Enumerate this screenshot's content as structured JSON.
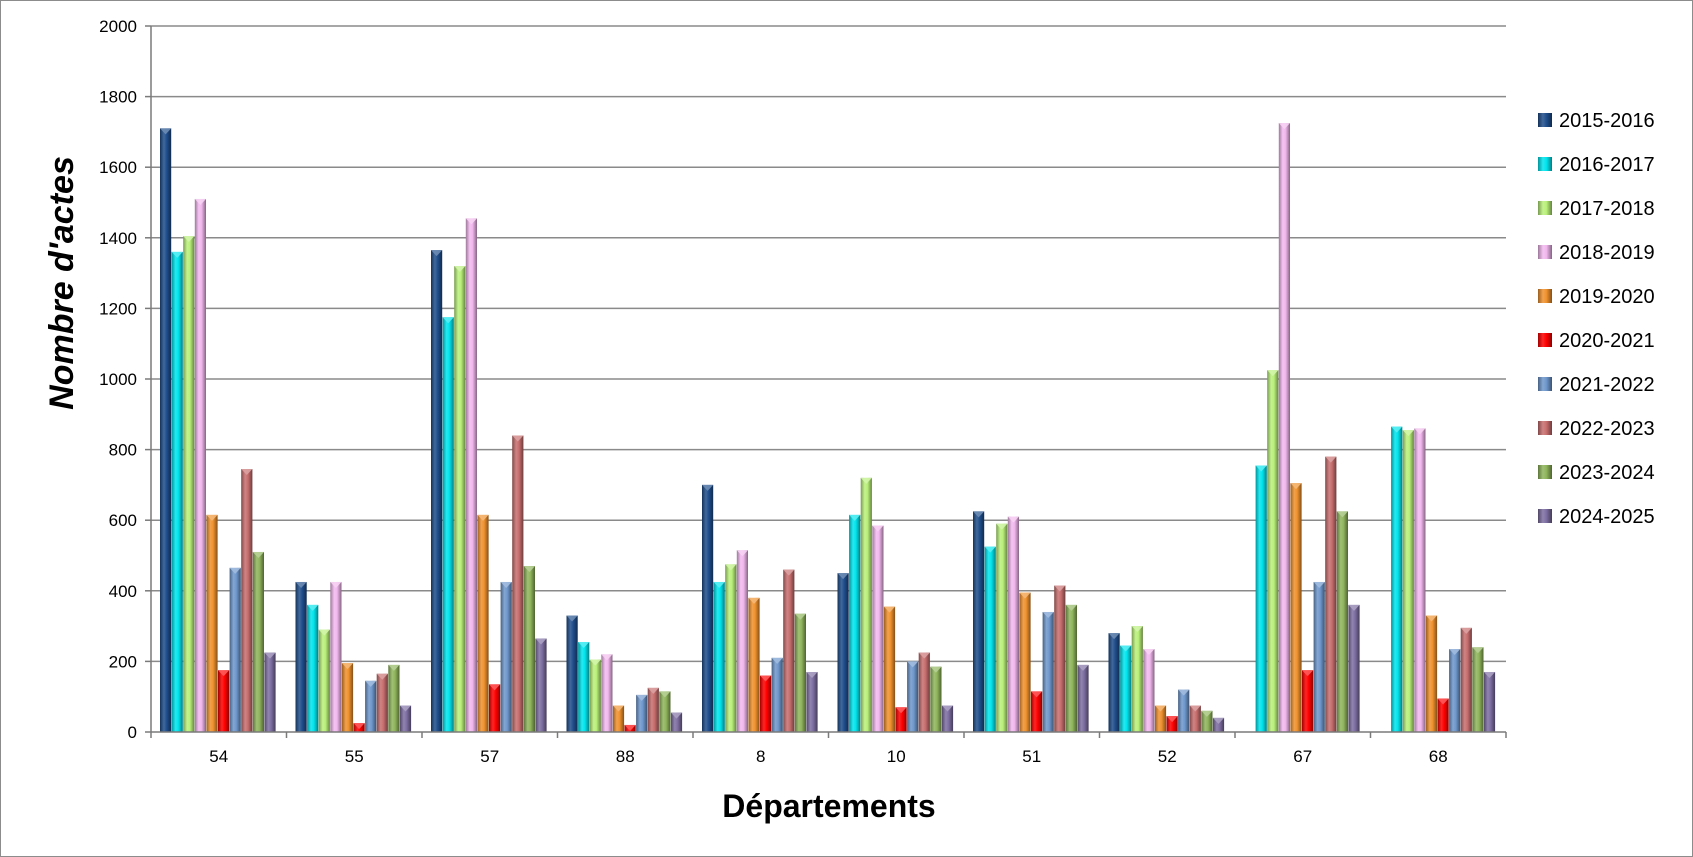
{
  "chart_data": {
    "type": "bar",
    "title": "",
    "xlabel": "Départements",
    "ylabel": "Nombre  d'actes",
    "ylim": [
      0,
      2000
    ],
    "yticks": [
      0,
      200,
      400,
      600,
      800,
      1000,
      1200,
      1400,
      1600,
      1800,
      2000
    ],
    "grid": true,
    "legend_position": "right",
    "categories": [
      "54",
      "55",
      "57",
      "88",
      "8",
      "10",
      "51",
      "52",
      "67",
      "68"
    ],
    "series": [
      {
        "name": "2015-2016",
        "color": "#1F4E8C",
        "values": [
          1710,
          425,
          1365,
          330,
          700,
          450,
          625,
          280,
          0,
          0
        ]
      },
      {
        "name": "2016-2017",
        "color": "#00E5EE",
        "values": [
          1360,
          360,
          1175,
          255,
          425,
          615,
          525,
          245,
          755,
          865
        ]
      },
      {
        "name": "2017-2018",
        "color": "#B9F07A",
        "values": [
          1405,
          290,
          1320,
          205,
          475,
          720,
          590,
          300,
          1025,
          855
        ]
      },
      {
        "name": "2018-2019",
        "color": "#F2B8EE",
        "values": [
          1510,
          425,
          1455,
          220,
          515,
          585,
          610,
          235,
          1725,
          860
        ]
      },
      {
        "name": "2019-2020",
        "color": "#F0922E",
        "values": [
          615,
          195,
          615,
          75,
          380,
          355,
          395,
          75,
          705,
          330
        ]
      },
      {
        "name": "2020-2021",
        "color": "#FF0000",
        "values": [
          175,
          25,
          135,
          20,
          160,
          70,
          115,
          45,
          175,
          95
        ]
      },
      {
        "name": "2021-2022",
        "color": "#6E97CC",
        "values": [
          465,
          145,
          425,
          105,
          210,
          200,
          340,
          120,
          425,
          235
        ]
      },
      {
        "name": "2022-2023",
        "color": "#C86E6E",
        "values": [
          745,
          165,
          840,
          125,
          460,
          225,
          415,
          75,
          780,
          295
        ]
      },
      {
        "name": "2023-2024",
        "color": "#8FB55C",
        "values": [
          510,
          190,
          470,
          115,
          335,
          185,
          360,
          60,
          625,
          240
        ]
      },
      {
        "name": "2024-2025",
        "color": "#7E6EA2",
        "values": [
          225,
          75,
          265,
          55,
          170,
          75,
          190,
          40,
          360,
          170
        ]
      }
    ]
  }
}
